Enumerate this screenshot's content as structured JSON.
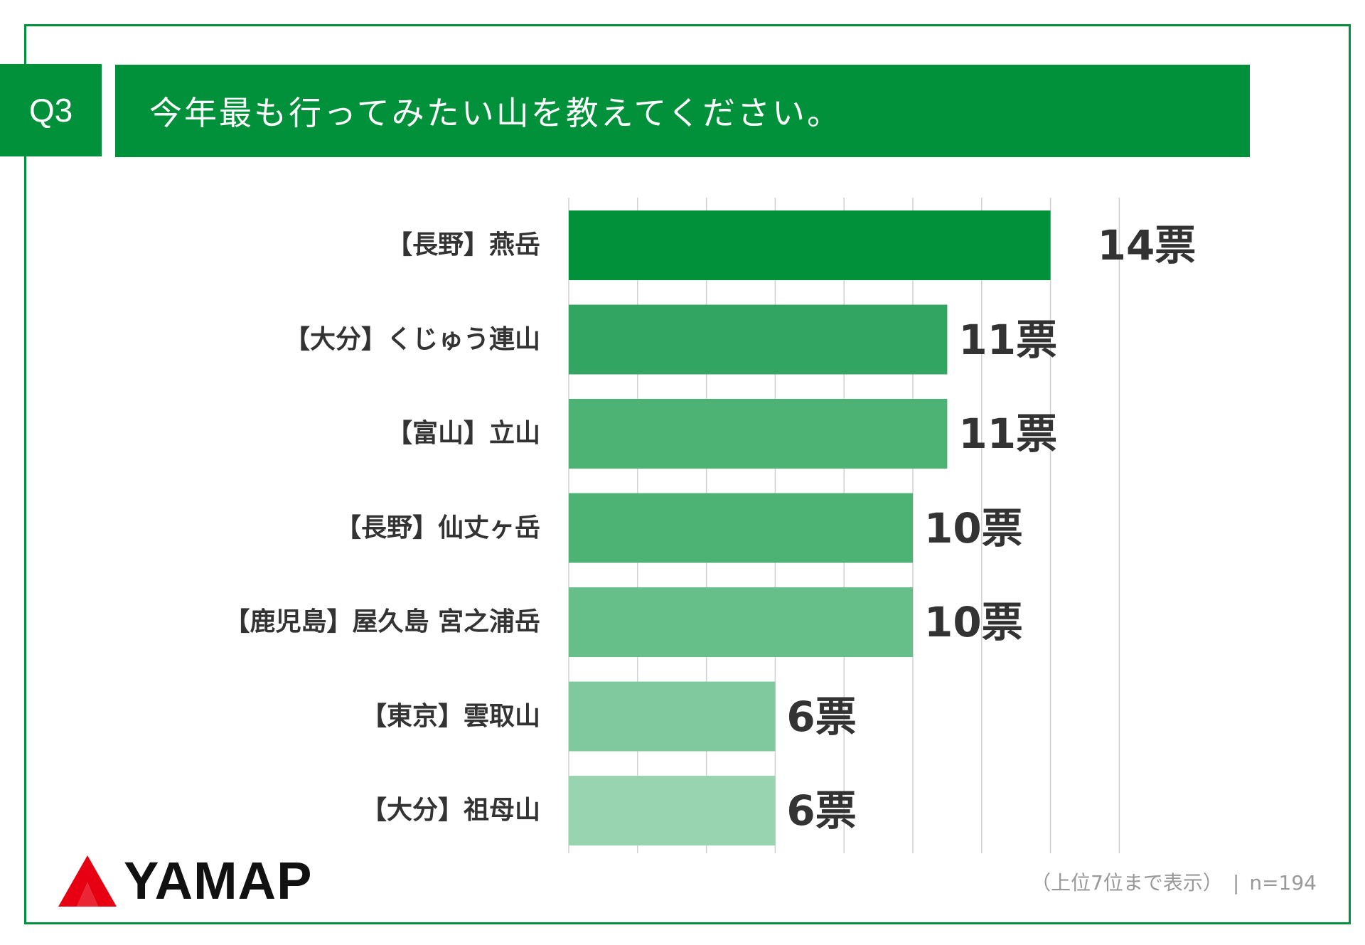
{
  "header": {
    "q_number": "Q3",
    "title": "今年最も行ってみたい山を教えてください。"
  },
  "chart_data": {
    "type": "bar",
    "orientation": "horizontal",
    "title": "今年最も行ってみたい山を教えてください。",
    "categories": [
      "【長野】燕岳",
      "【大分】くじゅう連山",
      "【富山】立山",
      "【長野】仙丈ヶ岳",
      "【鹿児島】屋久島 宮之浦岳",
      "【東京】雲取山",
      "【大分】祖母山"
    ],
    "values": [
      14,
      11,
      11,
      10,
      10,
      6,
      6
    ],
    "value_labels": [
      "14票",
      "11票",
      "11票",
      "10票",
      "10票",
      "6票",
      "6票"
    ],
    "bar_colors": [
      "#00913a",
      "#33a563",
      "#4db375",
      "#4db375",
      "#66be89",
      "#80c99e",
      "#99d4b1"
    ],
    "xlim": [
      0,
      16
    ],
    "grid": true,
    "xlabel": "",
    "ylabel": ""
  },
  "footer": {
    "logo_text": "YAMAP",
    "note": "（上位7位まで表示）",
    "sample": "n=194"
  },
  "colors": {
    "brand_green": "#00913a",
    "gridline": "#d0d0d0",
    "logo_red": "#e60012"
  }
}
